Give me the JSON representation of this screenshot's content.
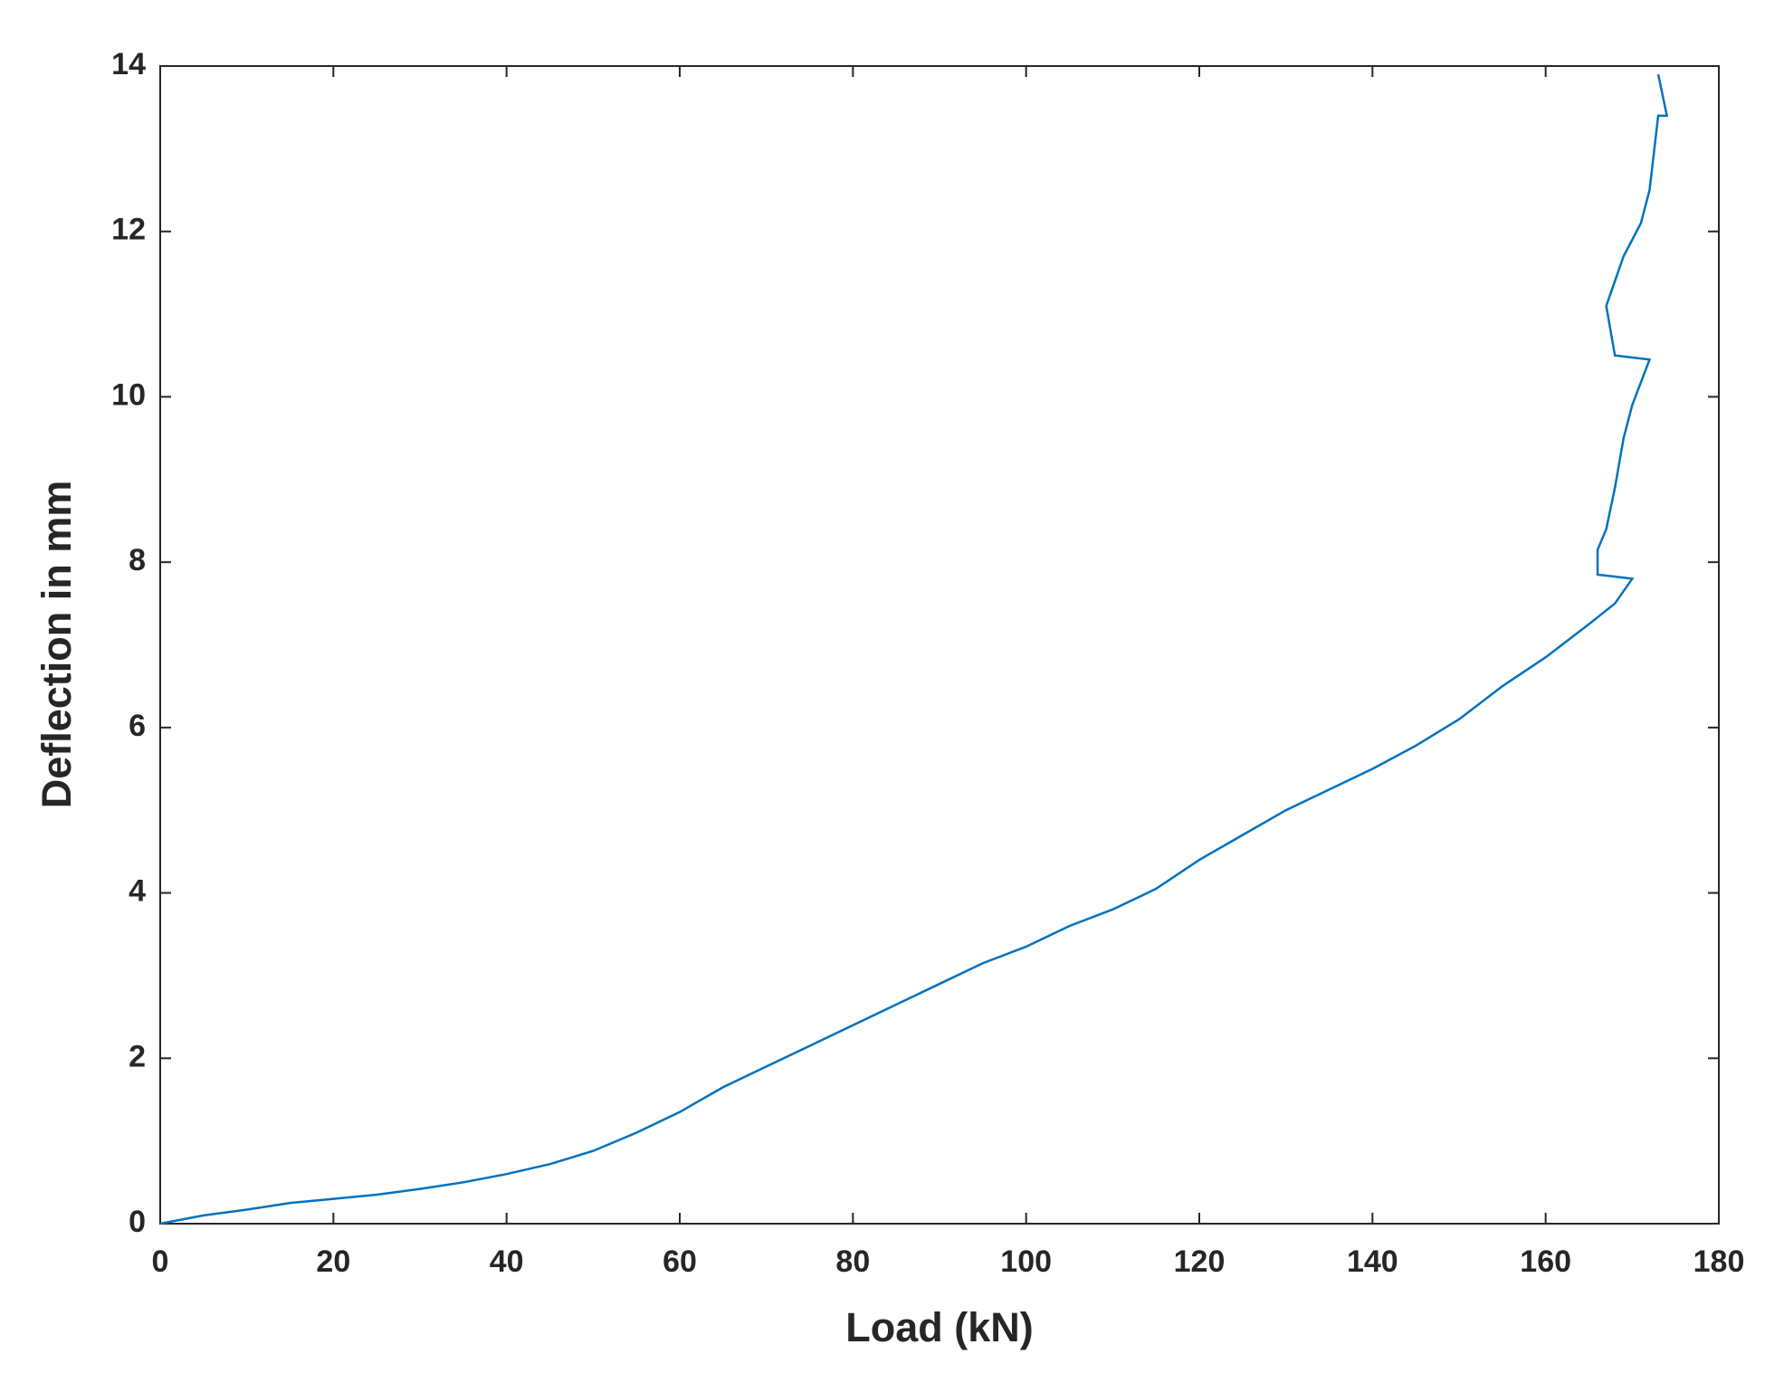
{
  "chart_data": {
    "type": "line",
    "x_label": "Load (kN)",
    "y_label": "Deflection in mm",
    "xlim": [
      0,
      180
    ],
    "xticks": [
      0,
      20,
      40,
      60,
      80,
      100,
      120,
      140,
      160,
      180
    ],
    "ylim": [
      0,
      14
    ],
    "yticks": [
      0,
      2,
      4,
      6,
      8,
      10,
      12,
      14
    ],
    "grid": false,
    "series": [
      {
        "color": "#0072bd",
        "x": [
          0,
          5,
          10,
          15,
          20,
          25,
          30,
          35,
          40,
          45,
          50,
          55,
          60,
          65,
          70,
          75,
          80,
          85,
          90,
          95,
          100,
          105,
          110,
          115,
          120,
          125,
          130,
          135,
          140,
          145,
          150,
          155,
          160,
          165,
          168,
          170,
          166,
          166,
          167,
          168,
          169,
          170,
          172,
          168,
          167,
          169,
          171,
          172,
          173,
          174,
          173
        ],
        "values": [
          0,
          0.1,
          0.17,
          0.25,
          0.3,
          0.35,
          0.42,
          0.5,
          0.6,
          0.72,
          0.88,
          1.1,
          1.35,
          1.65,
          1.9,
          2.15,
          2.4,
          2.65,
          2.9,
          3.15,
          3.35,
          3.6,
          3.8,
          4.05,
          4.4,
          4.7,
          5.0,
          5.25,
          5.5,
          5.78,
          6.1,
          6.5,
          6.85,
          7.25,
          7.5,
          7.8,
          7.85,
          8.15,
          8.4,
          8.9,
          9.5,
          9.9,
          10.45,
          10.5,
          11.1,
          11.7,
          12.1,
          12.5,
          13.4,
          13.4,
          13.9
        ]
      }
    ]
  }
}
